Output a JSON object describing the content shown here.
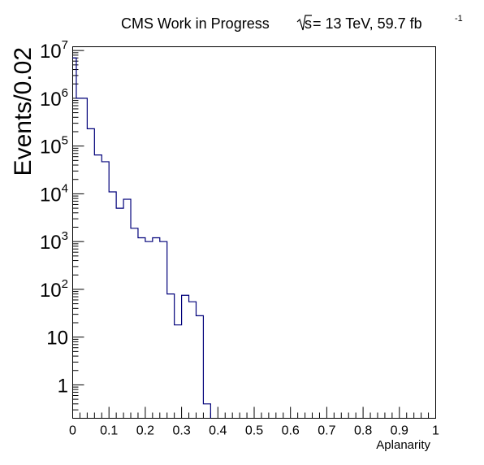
{
  "chart_data": {
    "type": "histogram",
    "title": "CMS Work in Progress",
    "energy_label": "s",
    "energy_value": " = 13 TeV, 59.7 fb",
    "lumi_exponent": "-1",
    "xlabel": "Aplanarity",
    "ylabel": "Events/0.02",
    "xlim": [
      0,
      1
    ],
    "ylim": [
      0.2,
      12000000
    ],
    "y_scale": "log",
    "bin_width": 0.02,
    "x_ticks": [
      {
        "value": 0,
        "label": "0"
      },
      {
        "value": 0.1,
        "label": "0.1"
      },
      {
        "value": 0.2,
        "label": "0.2"
      },
      {
        "value": 0.3,
        "label": "0.3"
      },
      {
        "value": 0.4,
        "label": "0.4"
      },
      {
        "value": 0.5,
        "label": "0.5"
      },
      {
        "value": 0.6,
        "label": "0.6"
      },
      {
        "value": 0.7,
        "label": "0.7"
      },
      {
        "value": 0.8,
        "label": "0.8"
      },
      {
        "value": 0.9,
        "label": "0.9"
      },
      {
        "value": 1,
        "label": "1"
      }
    ],
    "y_ticks": [
      {
        "value": 1,
        "base": "1",
        "exp": ""
      },
      {
        "value": 10,
        "base": "10",
        "exp": ""
      },
      {
        "value": 100,
        "base": "10",
        "exp": "2"
      },
      {
        "value": 1000,
        "base": "10",
        "exp": "3"
      },
      {
        "value": 10000,
        "base": "10",
        "exp": "4"
      },
      {
        "value": 100000,
        "base": "10",
        "exp": "5"
      },
      {
        "value": 1000000,
        "base": "10",
        "exp": "6"
      },
      {
        "value": 10000000,
        "base": "10",
        "exp": "7"
      }
    ],
    "bins": [
      {
        "low": 0.0,
        "high": 0.01,
        "value": 7000000
      },
      {
        "low": 0.01,
        "high": 0.02,
        "value": 1000000
      },
      {
        "low": 0.02,
        "high": 0.04,
        "value": 1000000
      },
      {
        "low": 0.04,
        "high": 0.06,
        "value": 230000
      },
      {
        "low": 0.06,
        "high": 0.08,
        "value": 65000
      },
      {
        "low": 0.08,
        "high": 0.1,
        "value": 47000
      },
      {
        "low": 0.1,
        "high": 0.12,
        "value": 11000
      },
      {
        "low": 0.12,
        "high": 0.14,
        "value": 5000
      },
      {
        "low": 0.14,
        "high": 0.16,
        "value": 7700
      },
      {
        "low": 0.16,
        "high": 0.18,
        "value": 1900
      },
      {
        "low": 0.18,
        "high": 0.2,
        "value": 1200
      },
      {
        "low": 0.2,
        "high": 0.22,
        "value": 1000
      },
      {
        "low": 0.22,
        "high": 0.24,
        "value": 1200
      },
      {
        "low": 0.24,
        "high": 0.26,
        "value": 1000
      },
      {
        "low": 0.26,
        "high": 0.28,
        "value": 80
      },
      {
        "low": 0.28,
        "high": 0.3,
        "value": 18
      },
      {
        "low": 0.3,
        "high": 0.32,
        "value": 75
      },
      {
        "low": 0.32,
        "high": 0.34,
        "value": 55
      },
      {
        "low": 0.34,
        "high": 0.36,
        "value": 28
      },
      {
        "low": 0.36,
        "high": 0.38,
        "value": 0.4
      }
    ],
    "colors": {
      "line": "#00007a",
      "frame": "#000000",
      "background": "#ffffff"
    }
  }
}
